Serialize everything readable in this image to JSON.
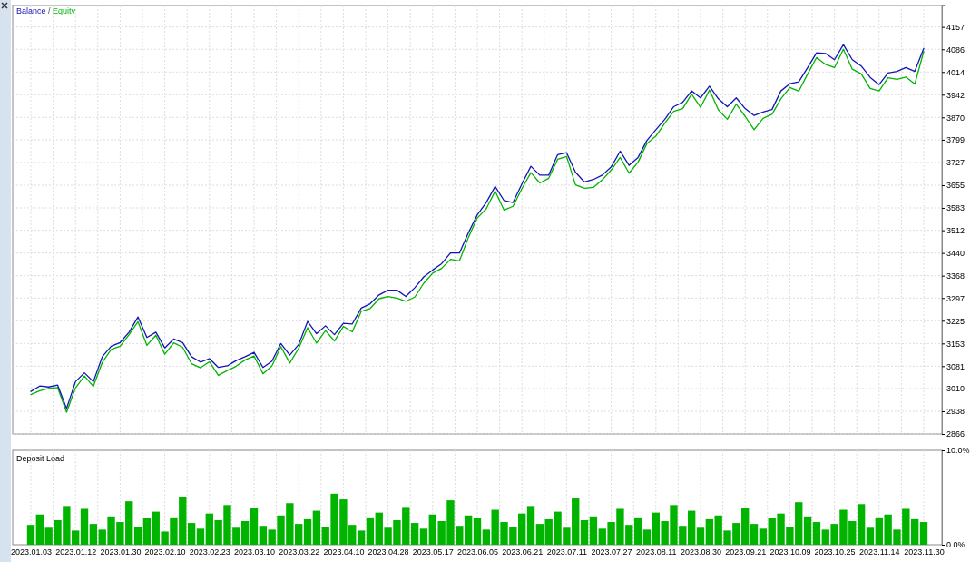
{
  "chart_data": [
    {
      "type": "line",
      "categories": [
        "2023.01.03",
        null,
        null,
        null,
        null,
        "2023.01.12",
        null,
        null,
        null,
        null,
        "2023.01.30",
        null,
        null,
        null,
        null,
        "2023.02.10",
        null,
        null,
        null,
        null,
        "2023.02.23",
        null,
        null,
        null,
        null,
        "2023.03.10",
        null,
        null,
        null,
        null,
        "2023.03.22",
        null,
        null,
        null,
        null,
        "2023.04.10",
        null,
        null,
        null,
        null,
        "2023.04.28",
        null,
        null,
        null,
        null,
        "2023.05.17",
        null,
        null,
        null,
        null,
        "2023.06.05",
        null,
        null,
        null,
        null,
        "2023.06.21",
        null,
        null,
        null,
        null,
        "2023.07.11",
        null,
        null,
        null,
        null,
        "2023.07.27",
        null,
        null,
        null,
        null,
        "2023.08.11",
        null,
        null,
        null,
        null,
        "2023.08.30",
        null,
        null,
        null,
        null,
        "2023.09.21",
        null,
        null,
        null,
        null,
        "2023.10.09",
        null,
        null,
        null,
        null,
        "2023.10.25",
        null,
        null,
        null,
        null,
        "2023.11.14",
        null,
        null,
        null,
        null,
        "2023.11.30"
      ],
      "series": [
        {
          "name": "Balance",
          "color": "#1414b4",
          "values": [
            3001,
            3018,
            3015,
            3021,
            2947,
            3032,
            3060,
            3032,
            3111,
            3144,
            3156,
            3189,
            3237,
            3172,
            3189,
            3139,
            3167,
            3156,
            3111,
            3094,
            3105,
            3077,
            3082,
            3099,
            3111,
            3125,
            3077,
            3097,
            3153,
            3116,
            3150,
            3223,
            3184,
            3209,
            3181,
            3217,
            3215,
            3265,
            3279,
            3307,
            3322,
            3322,
            3302,
            3330,
            3364,
            3386,
            3406,
            3440,
            3440,
            3504,
            3561,
            3600,
            3651,
            3606,
            3600,
            3659,
            3715,
            3687,
            3687,
            3752,
            3758,
            3696,
            3665,
            3673,
            3687,
            3713,
            3763,
            3718,
            3743,
            3797,
            3831,
            3864,
            3904,
            3918,
            3954,
            3932,
            3969,
            3929,
            3904,
            3932,
            3898,
            3876,
            3887,
            3895,
            3954,
            3977,
            3983,
            4028,
            4075,
            4073,
            4053,
            4101,
            4053,
            4033,
            3997,
            3974,
            4011,
            4016,
            4028,
            4016,
            4089
          ]
        },
        {
          "name": "Equity",
          "color": "#00b400",
          "values": [
            2991,
            3003,
            3010,
            3013,
            2935,
            3012,
            3050,
            3017,
            3093,
            3134,
            3144,
            3181,
            3222,
            3147,
            3179,
            3119,
            3155,
            3141,
            3089,
            3076,
            3095,
            3052,
            3067,
            3081,
            3101,
            3113,
            3057,
            3082,
            3143,
            3091,
            3138,
            3203,
            3154,
            3194,
            3161,
            3207,
            3190,
            3255,
            3264,
            3295,
            3302,
            3297,
            3287,
            3300,
            3344,
            3376,
            3391,
            3420,
            3415,
            3489,
            3551,
            3580,
            3636,
            3576,
            3588,
            3644,
            3695,
            3662,
            3677,
            3737,
            3746,
            3656,
            3645,
            3648,
            3672,
            3703,
            3743,
            3693,
            3728,
            3787,
            3811,
            3852,
            3889,
            3898,
            3944,
            3902,
            3957,
            3894,
            3864,
            3912,
            3873,
            3831,
            3867,
            3880,
            3929,
            3965,
            3953,
            4008,
            4060,
            4038,
            4028,
            4086,
            4023,
            4008,
            3962,
            3954,
            3996,
            3991,
            3998,
            3976,
            4079
          ]
        }
      ],
      "ylim": [
        2866,
        4225
      ],
      "yticks": [
        2866,
        2938,
        3010,
        3081,
        3153,
        3225,
        3297,
        3368,
        3440,
        3512,
        3583,
        3655,
        3727,
        3799,
        3870,
        3942,
        4014,
        4086,
        4157
      ],
      "grid": true,
      "legend": "top left",
      "tick_labels": "y",
      "annotations": [
        "/"
      ]
    },
    {
      "type": "bar",
      "title": "Deposit Load",
      "categories": [
        "2023.01.03",
        null,
        null,
        null,
        null,
        "2023.01.12",
        null,
        null,
        null,
        null,
        "2023.01.30",
        null,
        null,
        null,
        null,
        "2023.02.10",
        null,
        null,
        null,
        null,
        "2023.02.23",
        null,
        null,
        null,
        null,
        "2023.03.10",
        null,
        null,
        null,
        null,
        "2023.03.22",
        null,
        null,
        null,
        null,
        "2023.04.10",
        null,
        null,
        null,
        null,
        "2023.04.28",
        null,
        null,
        null,
        null,
        "2023.05.17",
        null,
        null,
        null,
        null,
        "2023.06.05",
        null,
        null,
        null,
        null,
        "2023.06.21",
        null,
        null,
        null,
        null,
        "2023.07.11",
        null,
        null,
        null,
        null,
        "2023.07.27",
        null,
        null,
        null,
        null,
        "2023.08.11",
        null,
        null,
        null,
        null,
        "2023.08.30",
        null,
        null,
        null,
        null,
        "2023.09.21",
        null,
        null,
        null,
        null,
        "2023.10.09",
        null,
        null,
        null,
        null,
        "2023.10.25",
        null,
        null,
        null,
        null,
        "2023.11.14",
        null,
        null,
        null,
        null,
        "2023.11.30"
      ],
      "values": [
        2.1,
        3.2,
        1.8,
        2.6,
        4.1,
        1.5,
        3.8,
        2.2,
        1.6,
        3.0,
        2.4,
        4.6,
        1.9,
        2.8,
        3.5,
        1.4,
        2.9,
        5.1,
        2.3,
        1.7,
        3.3,
        2.6,
        4.2,
        1.8,
        2.5,
        3.9,
        2.0,
        1.6,
        3.1,
        4.4,
        2.2,
        2.7,
        3.6,
        1.9,
        5.4,
        4.8,
        2.1,
        1.5,
        2.9,
        3.4,
        1.8,
        2.6,
        4.0,
        2.3,
        1.7,
        3.2,
        2.5,
        4.7,
        2.0,
        3.1,
        2.8,
        1.6,
        3.7,
        2.4,
        1.9,
        3.3,
        4.1,
        2.2,
        2.7,
        3.5,
        1.8,
        4.9,
        2.6,
        3.0,
        1.7,
        2.4,
        3.8,
        2.1,
        2.9,
        1.6,
        3.4,
        2.5,
        4.2,
        2.0,
        3.6,
        1.8,
        2.7,
        3.1,
        1.5,
        2.3,
        3.9,
        2.2,
        1.7,
        2.8,
        3.3,
        1.9,
        4.5,
        3.0,
        2.4,
        1.6,
        2.2,
        3.7,
        2.5,
        4.3,
        1.8,
        2.9,
        3.2,
        1.6,
        3.8,
        2.7,
        2.4
      ],
      "color": "#00b400",
      "ylim": [
        0,
        10
      ],
      "yticks": [
        {
          "value": 0,
          "label": "0.0%"
        },
        {
          "value": 10,
          "label": "10.0%"
        }
      ],
      "grid": "x"
    }
  ]
}
